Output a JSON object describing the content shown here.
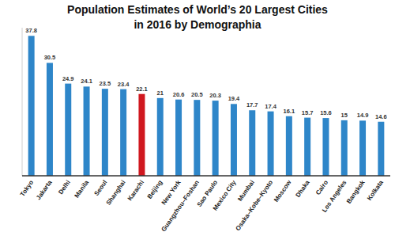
{
  "chart_data": {
    "type": "bar",
    "title": "Population Estimates of World’s 20 Largest Cities in 2016 by Demographia",
    "categories": [
      "Tokyo",
      "Jakarta",
      "Delhi",
      "Manila",
      "Seoul",
      "Shanghai",
      "Karachi",
      "Beijing",
      "New York",
      "Guangzhou–Foshan",
      "Sao Paulo",
      "Mexico City",
      "Mumbai",
      "Osaka–Kobe–Kyoto",
      "Moscow",
      "Dhaka",
      "Cairo",
      "Los Angeles",
      "Bangkok",
      "Kolkata"
    ],
    "values": [
      37.8,
      30.5,
      24.9,
      24.1,
      23.5,
      23.4,
      22.1,
      21,
      20.6,
      20.5,
      20.3,
      19.4,
      17.7,
      17.4,
      16.1,
      15.7,
      15.6,
      15,
      14.9,
      14.6
    ],
    "colors": [
      "#2e86c9",
      "#2e86c9",
      "#2e86c9",
      "#2e86c9",
      "#2e86c9",
      "#2e86c9",
      "#d0181f",
      "#2e86c9",
      "#2e86c9",
      "#2e86c9",
      "#2e86c9",
      "#2e86c9",
      "#2e86c9",
      "#2e86c9",
      "#2e86c9",
      "#2e86c9",
      "#2e86c9",
      "#2e86c9",
      "#2e86c9",
      "#2e86c9"
    ],
    "ylim": [
      0,
      40
    ],
    "data_labels": true,
    "tick_labels": "x",
    "grid": false
  }
}
